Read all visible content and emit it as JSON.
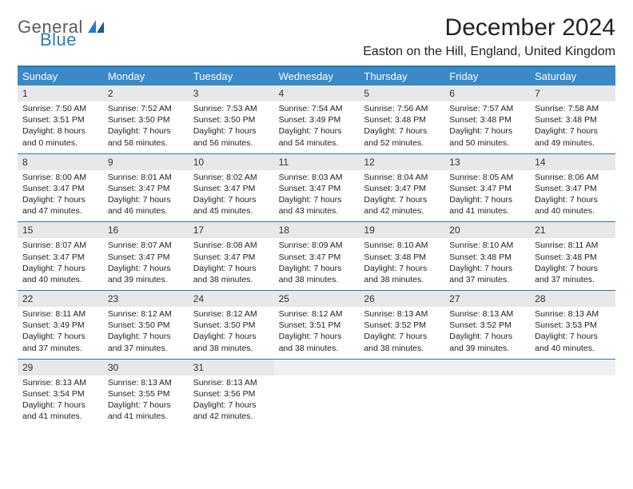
{
  "logo": {
    "part1": "General",
    "part2": "Blue"
  },
  "title": "December 2024",
  "location": "Easton on the Hill, England, United Kingdom",
  "colors": {
    "header_band": "#3a89c9",
    "band_border": "#2a76b8",
    "daynum_bg": "#e8e8e8",
    "logo_gray": "#5a5a5a",
    "logo_blue": "#2b7bbf"
  },
  "weekdays": [
    "Sunday",
    "Monday",
    "Tuesday",
    "Wednesday",
    "Thursday",
    "Friday",
    "Saturday"
  ],
  "weeks": [
    [
      {
        "n": "1",
        "sr": "7:50 AM",
        "ss": "3:51 PM",
        "dl": "8 hours and 0 minutes."
      },
      {
        "n": "2",
        "sr": "7:52 AM",
        "ss": "3:50 PM",
        "dl": "7 hours and 58 minutes."
      },
      {
        "n": "3",
        "sr": "7:53 AM",
        "ss": "3:50 PM",
        "dl": "7 hours and 56 minutes."
      },
      {
        "n": "4",
        "sr": "7:54 AM",
        "ss": "3:49 PM",
        "dl": "7 hours and 54 minutes."
      },
      {
        "n": "5",
        "sr": "7:56 AM",
        "ss": "3:48 PM",
        "dl": "7 hours and 52 minutes."
      },
      {
        "n": "6",
        "sr": "7:57 AM",
        "ss": "3:48 PM",
        "dl": "7 hours and 50 minutes."
      },
      {
        "n": "7",
        "sr": "7:58 AM",
        "ss": "3:48 PM",
        "dl": "7 hours and 49 minutes."
      }
    ],
    [
      {
        "n": "8",
        "sr": "8:00 AM",
        "ss": "3:47 PM",
        "dl": "7 hours and 47 minutes."
      },
      {
        "n": "9",
        "sr": "8:01 AM",
        "ss": "3:47 PM",
        "dl": "7 hours and 46 minutes."
      },
      {
        "n": "10",
        "sr": "8:02 AM",
        "ss": "3:47 PM",
        "dl": "7 hours and 45 minutes."
      },
      {
        "n": "11",
        "sr": "8:03 AM",
        "ss": "3:47 PM",
        "dl": "7 hours and 43 minutes."
      },
      {
        "n": "12",
        "sr": "8:04 AM",
        "ss": "3:47 PM",
        "dl": "7 hours and 42 minutes."
      },
      {
        "n": "13",
        "sr": "8:05 AM",
        "ss": "3:47 PM",
        "dl": "7 hours and 41 minutes."
      },
      {
        "n": "14",
        "sr": "8:06 AM",
        "ss": "3:47 PM",
        "dl": "7 hours and 40 minutes."
      }
    ],
    [
      {
        "n": "15",
        "sr": "8:07 AM",
        "ss": "3:47 PM",
        "dl": "7 hours and 40 minutes."
      },
      {
        "n": "16",
        "sr": "8:07 AM",
        "ss": "3:47 PM",
        "dl": "7 hours and 39 minutes."
      },
      {
        "n": "17",
        "sr": "8:08 AM",
        "ss": "3:47 PM",
        "dl": "7 hours and 38 minutes."
      },
      {
        "n": "18",
        "sr": "8:09 AM",
        "ss": "3:47 PM",
        "dl": "7 hours and 38 minutes."
      },
      {
        "n": "19",
        "sr": "8:10 AM",
        "ss": "3:48 PM",
        "dl": "7 hours and 38 minutes."
      },
      {
        "n": "20",
        "sr": "8:10 AM",
        "ss": "3:48 PM",
        "dl": "7 hours and 37 minutes."
      },
      {
        "n": "21",
        "sr": "8:11 AM",
        "ss": "3:48 PM",
        "dl": "7 hours and 37 minutes."
      }
    ],
    [
      {
        "n": "22",
        "sr": "8:11 AM",
        "ss": "3:49 PM",
        "dl": "7 hours and 37 minutes."
      },
      {
        "n": "23",
        "sr": "8:12 AM",
        "ss": "3:50 PM",
        "dl": "7 hours and 37 minutes."
      },
      {
        "n": "24",
        "sr": "8:12 AM",
        "ss": "3:50 PM",
        "dl": "7 hours and 38 minutes."
      },
      {
        "n": "25",
        "sr": "8:12 AM",
        "ss": "3:51 PM",
        "dl": "7 hours and 38 minutes."
      },
      {
        "n": "26",
        "sr": "8:13 AM",
        "ss": "3:52 PM",
        "dl": "7 hours and 38 minutes."
      },
      {
        "n": "27",
        "sr": "8:13 AM",
        "ss": "3:52 PM",
        "dl": "7 hours and 39 minutes."
      },
      {
        "n": "28",
        "sr": "8:13 AM",
        "ss": "3:53 PM",
        "dl": "7 hours and 40 minutes."
      }
    ],
    [
      {
        "n": "29",
        "sr": "8:13 AM",
        "ss": "3:54 PM",
        "dl": "7 hours and 41 minutes."
      },
      {
        "n": "30",
        "sr": "8:13 AM",
        "ss": "3:55 PM",
        "dl": "7 hours and 41 minutes."
      },
      {
        "n": "31",
        "sr": "8:13 AM",
        "ss": "3:56 PM",
        "dl": "7 hours and 42 minutes."
      },
      {
        "empty": true
      },
      {
        "empty": true
      },
      {
        "empty": true
      },
      {
        "empty": true
      }
    ]
  ],
  "labels": {
    "sunrise": "Sunrise:",
    "sunset": "Sunset:",
    "daylight": "Daylight:"
  }
}
